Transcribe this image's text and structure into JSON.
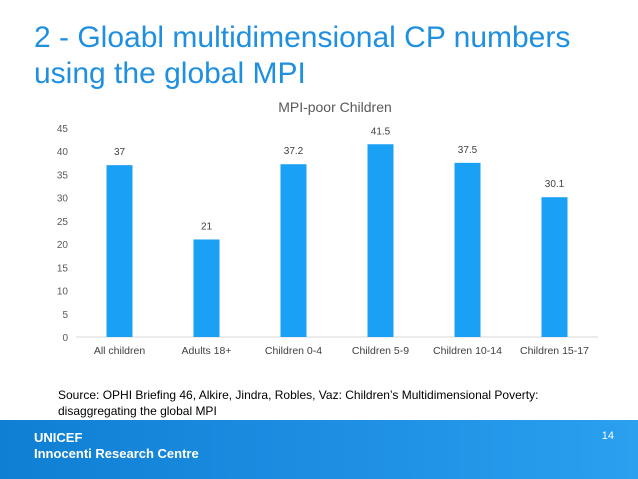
{
  "slide": {
    "title_line1": "2 - Gloabl multidimensional CP numbers",
    "title_line2": "using the global MPI",
    "source_line1": "Source: OPHI Briefing 46, Alkire, Jindra, Robles, Vaz: Children’s Multidimensional Poverty:",
    "source_line2": "disaggregating the global MPI",
    "footer_org1": "UNICEF",
    "footer_org2": "Innocenti Research Centre",
    "page_number": "14"
  },
  "colors": {
    "title": "#1f8fe0",
    "bar": "#1aa0f5",
    "footer": "#1788dc"
  },
  "chart_data": {
    "type": "bar",
    "title": "MPI-poor Children",
    "categories": [
      "All children",
      "Adults 18+",
      "Children 0-4",
      "Children 5-9",
      "Children 10-14",
      "Children 15-17"
    ],
    "values": [
      37,
      21,
      37.2,
      41.5,
      37.5,
      30.1
    ],
    "value_labels": [
      "37",
      "21",
      "37.2",
      "41.5",
      "37.5",
      "30.1"
    ],
    "ylim": [
      0,
      45
    ],
    "yticks": [
      0,
      5,
      10,
      15,
      20,
      25,
      30,
      35,
      40,
      45
    ],
    "xlabel": "",
    "ylabel": "",
    "grid": false,
    "legend": "none"
  }
}
